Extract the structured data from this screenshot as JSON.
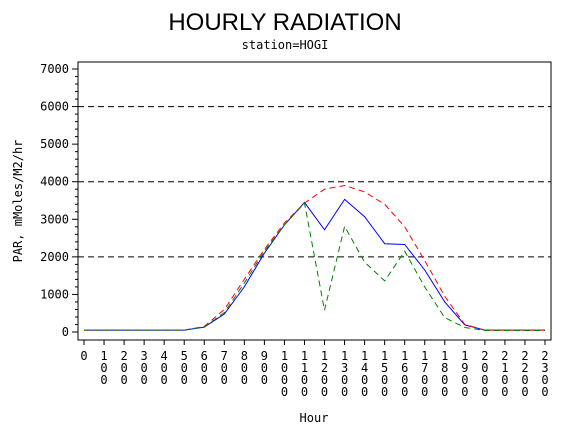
{
  "chart_data": {
    "type": "line",
    "title": "HOURLY RADIATION",
    "subtitle": "station=HOGI",
    "xlabel": "Hour",
    "ylabel": "PAR, mMoles/M2/hr",
    "x": [
      0,
      100,
      200,
      300,
      400,
      500,
      600,
      700,
      800,
      900,
      1000,
      1100,
      1200,
      1300,
      1400,
      1500,
      1600,
      1700,
      1800,
      1900,
      2000,
      2100,
      2200,
      2300
    ],
    "xtick_labels": [
      "0",
      "100",
      "200",
      "300",
      "400",
      "500",
      "600",
      "700",
      "800",
      "900",
      "1000",
      "1100",
      "1200",
      "1300",
      "1400",
      "1500",
      "1600",
      "1700",
      "1800",
      "1900",
      "2000",
      "2100",
      "2200",
      "2300"
    ],
    "ylim": [
      0,
      7000
    ],
    "yticks": [
      0,
      1000,
      2000,
      3000,
      4000,
      5000,
      6000,
      7000
    ],
    "ytick_labels": [
      "0",
      "1000",
      "2000",
      "3000",
      "4000",
      "5000",
      "6000",
      "7000"
    ],
    "reference_lines": [
      2000,
      4000,
      6000
    ],
    "series": [
      {
        "color": "#0000ff",
        "style": "solid",
        "values": [
          50,
          50,
          50,
          50,
          50,
          50,
          130,
          480,
          1200,
          2100,
          2850,
          3450,
          2720,
          3530,
          3070,
          2350,
          2330,
          1650,
          800,
          190,
          50,
          50,
          50,
          50
        ]
      },
      {
        "color": "#ff0000",
        "style": "dashed",
        "values": [
          50,
          50,
          50,
          50,
          50,
          50,
          150,
          600,
          1400,
          2200,
          2900,
          3430,
          3800,
          3900,
          3730,
          3400,
          2800,
          1900,
          950,
          200,
          50,
          50,
          50,
          50
        ]
      },
      {
        "color": "#008000",
        "style": "dashed",
        "values": [
          50,
          50,
          50,
          50,
          50,
          50,
          130,
          520,
          1300,
          2150,
          2850,
          3430,
          580,
          2810,
          1860,
          1360,
          2150,
          1200,
          380,
          120,
          40,
          40,
          40,
          40
        ]
      }
    ]
  }
}
